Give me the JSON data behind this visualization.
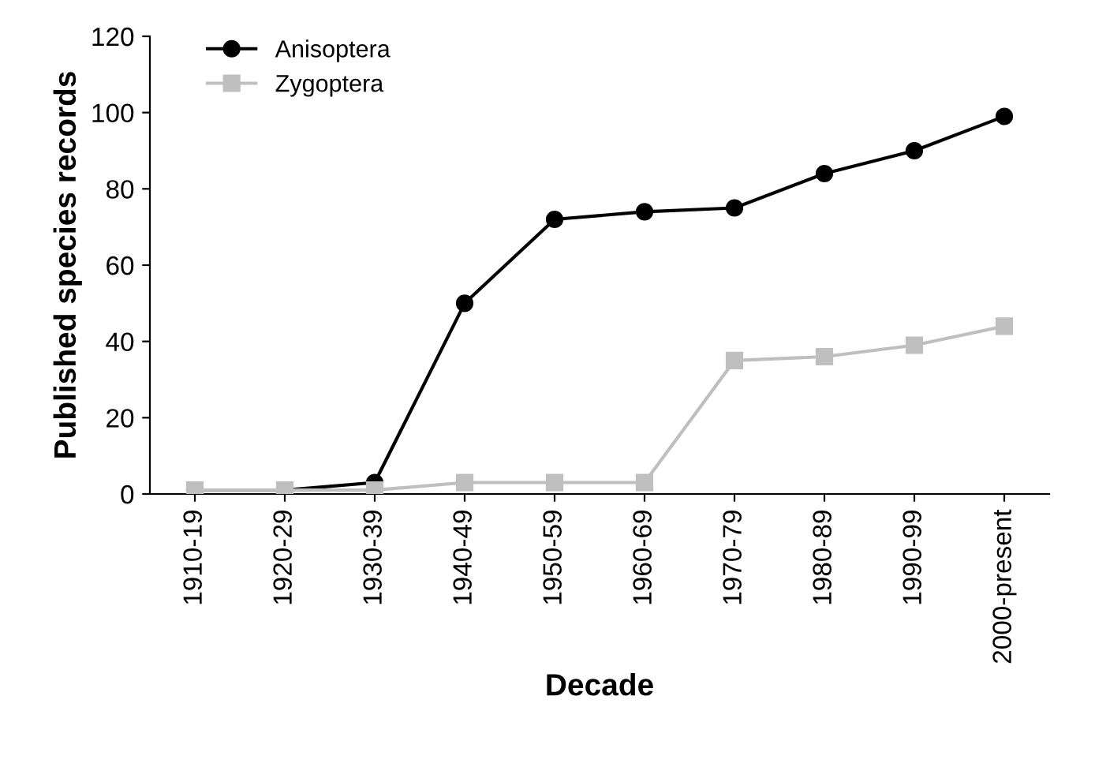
{
  "chart_data": {
    "type": "line",
    "xlabel": "Decade",
    "ylabel": "Published species records",
    "categories": [
      "1910-19",
      "1920-29",
      "1930-39",
      "1940-49",
      "1950-59",
      "1960-69",
      "1970-79",
      "1980-89",
      "1990-99",
      "2000-present"
    ],
    "series": [
      {
        "name": "Anisoptera",
        "color": "#000000",
        "marker": "circle",
        "values": [
          1,
          1,
          3,
          50,
          72,
          74,
          75,
          84,
          90,
          99
        ]
      },
      {
        "name": "Zygoptera",
        "color": "#bfbfbf",
        "marker": "square",
        "values": [
          1,
          1,
          1,
          3,
          3,
          3,
          35,
          36,
          39,
          44
        ]
      }
    ],
    "ylim": [
      0,
      120
    ],
    "yticks": [
      0,
      20,
      40,
      60,
      80,
      100,
      120
    ],
    "grid": false,
    "legend": "top left",
    "line_style": "solid"
  }
}
